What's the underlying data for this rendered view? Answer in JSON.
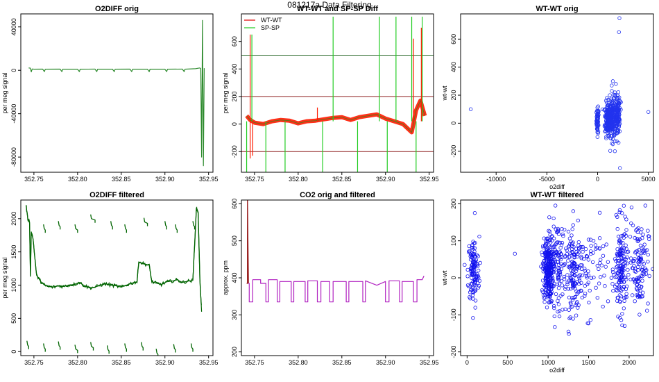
{
  "figure": {
    "title": "081217a   Data Filtering"
  },
  "chart_data": [
    {
      "id": "p1",
      "type": "line",
      "title": "O2DIFF orig",
      "xlabel": "",
      "ylabel": "per meg signal",
      "xlim": [
        352.735,
        352.955
      ],
      "ylim": [
        -94000,
        52000
      ],
      "xticks": [
        352.75,
        352.8,
        352.85,
        352.9,
        352.95
      ],
      "xticklabels": [
        "352.75",
        "352.80",
        "352.85",
        "352.90",
        "352.95"
      ],
      "yticks": [
        -80000,
        -40000,
        0,
        40000
      ],
      "yticklabels": [
        "-80000",
        "-40000",
        "0",
        "40000"
      ],
      "ytick_rotated": true,
      "series": [
        {
          "color": "#2e8b2e",
          "x": [
            352.744,
            352.746,
            352.747,
            352.748,
            352.75,
            352.76,
            352.762,
            352.763,
            352.78,
            352.782,
            352.783,
            352.8,
            352.802,
            352.803,
            352.82,
            352.822,
            352.823,
            352.84,
            352.842,
            352.843,
            352.86,
            352.862,
            352.863,
            352.88,
            352.882,
            352.883,
            352.9,
            352.902,
            352.903,
            352.92,
            352.922,
            352.923,
            352.935,
            352.94,
            352.941,
            352.942,
            352.943,
            352.944,
            352.945
          ],
          "y": [
            2200,
            2000,
            -1500,
            1200,
            1000,
            1100,
            -1200,
            1000,
            1100,
            -1300,
            1000,
            1000,
            -1200,
            1000,
            1100,
            -1200,
            1000,
            1000,
            -1300,
            1000,
            1100,
            -1200,
            1000,
            1000,
            -1300,
            1000,
            1000,
            -1200,
            1000,
            1100,
            -1200,
            1000,
            1500,
            2200,
            1500,
            -80000,
            46000,
            -88000,
            2000
          ]
        }
      ]
    },
    {
      "id": "p2",
      "type": "line",
      "title": "WT-WT and SP-SP Diff",
      "xlabel": "",
      "ylabel": "per meg signal",
      "xlim": [
        352.735,
        352.955
      ],
      "ylim": [
        -350,
        800
      ],
      "xticks": [
        352.75,
        352.8,
        352.85,
        352.9,
        352.95
      ],
      "xticklabels": [
        "352.75",
        "352.80",
        "352.85",
        "352.90",
        "352.95"
      ],
      "yticks": [
        -200,
        0,
        200,
        400,
        600
      ],
      "yticklabels": [
        "-200",
        "0",
        "200",
        "400",
        "600"
      ],
      "ytick_rotated": true,
      "hlines": [
        {
          "y": 500,
          "color": "#2e6b2e"
        },
        {
          "y": 200,
          "color": "#8b1a1a"
        },
        {
          "y": -200,
          "color": "#8b1a1a"
        }
      ],
      "legend": {
        "position": "top-left",
        "entries": [
          {
            "label": "WT-WT",
            "color": "#e00000"
          },
          {
            "label": "SP-SP",
            "color": "#22cc22"
          }
        ]
      },
      "series": [
        {
          "name": "WT-WT",
          "color": "#ff1a00",
          "x": [
            352.741,
            352.745,
            352.75,
            352.76,
            352.77,
            352.78,
            352.79,
            352.8,
            352.81,
            352.82,
            352.83,
            352.84,
            352.85,
            352.86,
            352.87,
            352.88,
            352.89,
            352.9,
            352.91,
            352.92,
            352.93,
            352.935,
            352.94,
            352.945
          ],
          "y": [
            60,
            30,
            10,
            0,
            20,
            30,
            25,
            5,
            20,
            25,
            35,
            45,
            50,
            30,
            50,
            60,
            70,
            40,
            20,
            0,
            -60,
            100,
            170,
            60
          ],
          "spikes": [
            {
              "x": 352.745,
              "y": 650
            },
            {
              "x": 352.745,
              "y": -250
            },
            {
              "x": 352.748,
              "y": -230
            },
            {
              "x": 352.822,
              "y": 120
            },
            {
              "x": 352.932,
              "y": 620
            },
            {
              "x": 352.941,
              "y": 700
            }
          ]
        },
        {
          "name": "SP-SP",
          "color": "#22cc22",
          "spikes": [
            {
              "x": 352.741,
              "y": -350
            },
            {
              "x": 352.747,
              "y": 650
            },
            {
              "x": 352.763,
              "y": -350
            },
            {
              "x": 352.785,
              "y": -350
            },
            {
              "x": 352.828,
              "y": -350
            },
            {
              "x": 352.84,
              "y": 780
            },
            {
              "x": 352.868,
              "y": -350
            },
            {
              "x": 352.893,
              "y": 780
            },
            {
              "x": 352.902,
              "y": -350
            },
            {
              "x": 352.912,
              "y": 780
            },
            {
              "x": 352.93,
              "y": 780
            },
            {
              "x": 352.935,
              "y": -350
            },
            {
              "x": 352.942,
              "y": 780
            }
          ]
        }
      ]
    },
    {
      "id": "p3",
      "type": "scatter",
      "title": "WT-WT orig",
      "xlabel": "o2diff",
      "ylabel": "wt-wt",
      "xlim": [
        -13500,
        5500
      ],
      "ylim": [
        -350,
        780
      ],
      "xticks": [
        -10000,
        -5000,
        0,
        5000
      ],
      "xticklabels": [
        "-10000",
        "-5000",
        "0",
        "5000"
      ],
      "yticks": [
        -200,
        0,
        200,
        400,
        600
      ],
      "yticklabels": [
        "-200",
        "0",
        "200",
        "400",
        "600"
      ],
      "ytick_rotated": true,
      "series": [
        {
          "color": "#2233ee",
          "points": [
            [
              -12500,
              100
            ],
            [
              5000,
              80
            ],
            [
              2150,
              750
            ],
            [
              2100,
              650
            ],
            [
              1500,
              300
            ],
            [
              1800,
              280
            ],
            [
              1400,
              230
            ],
            [
              1700,
              220
            ],
            [
              1200,
              200
            ],
            [
              2200,
              -320
            ],
            [
              1700,
              -200
            ],
            [
              1500,
              -150
            ],
            [
              1900,
              -130
            ],
            [
              1300,
              -90
            ],
            [
              50,
              120
            ],
            [
              0,
              -40
            ],
            [
              100,
              60
            ],
            [
              2300,
              150
            ],
            [
              2000,
              180
            ]
          ],
          "clusters": [
            {
              "cx": 0,
              "cy": 20,
              "sx": 60,
              "sy": 45,
              "n": 60
            },
            {
              "cx": 1000,
              "cy": 30,
              "sx": 150,
              "sy": 60,
              "n": 160
            },
            {
              "cx": 1500,
              "cy": 40,
              "sx": 250,
              "sy": 70,
              "n": 160
            },
            {
              "cx": 2000,
              "cy": 50,
              "sx": 120,
              "sy": 70,
              "n": 100
            }
          ]
        }
      ]
    },
    {
      "id": "p4",
      "type": "line",
      "title": "O2DIFF filtered",
      "xlabel": "",
      "ylabel": "per meg signal",
      "xlim": [
        352.735,
        352.955
      ],
      "ylim": [
        -60,
        2280
      ],
      "xticks": [
        352.75,
        352.8,
        352.85,
        352.9,
        352.95
      ],
      "xticklabels": [
        "352.75",
        "352.80",
        "352.85",
        "352.90",
        "352.95"
      ],
      "yticks": [
        0,
        500,
        1000,
        1500,
        2000
      ],
      "yticklabels": [
        "0",
        "500",
        "1000",
        "1500",
        "2000"
      ],
      "ytick_rotated": true,
      "series": [
        {
          "color": "#006400",
          "x": [
            352.741,
            352.743,
            352.745,
            352.746,
            352.747,
            352.749,
            352.753,
            352.758,
            352.762,
            352.766,
            352.772,
            352.778,
            352.784,
            352.79,
            352.796,
            352.802,
            352.808,
            352.814,
            352.82,
            352.826,
            352.832,
            352.838,
            352.844,
            352.85,
            352.856,
            352.862,
            352.868,
            352.87,
            352.876,
            352.882,
            352.885,
            352.89,
            352.896,
            352.902,
            352.908,
            352.914,
            352.92,
            352.926,
            352.932,
            352.936,
            352.938,
            352.94,
            352.942
          ],
          "y": [
            2200,
            2000,
            1950,
            1150,
            1800,
            1700,
            1150,
            1050,
            1000,
            980,
            970,
            990,
            980,
            1000,
            1010,
            1040,
            990,
            960,
            970,
            1000,
            1020,
            1000,
            990,
            970,
            1000,
            1030,
            1050,
            1350,
            1320,
            1300,
            1050,
            1030,
            1010,
            1050,
            1060,
            1080,
            1040,
            1060,
            1070,
            2150,
            2100,
            1100,
            600
          ],
          "segments": [
            {
              "x0": 352.761,
              "x1": 352.763,
              "y": 1850
            },
            {
              "x0": 352.778,
              "x1": 352.78,
              "y": 1900
            },
            {
              "x0": 352.797,
              "x1": 352.8,
              "y": 1850
            },
            {
              "x0": 352.815,
              "x1": 352.82,
              "y": 2000
            },
            {
              "x0": 352.838,
              "x1": 352.84,
              "y": 1900
            },
            {
              "x0": 352.854,
              "x1": 352.856,
              "y": 1850
            },
            {
              "x0": 352.876,
              "x1": 352.88,
              "y": 1950
            },
            {
              "x0": 352.9,
              "x1": 352.902,
              "y": 1900
            },
            {
              "x0": 352.912,
              "x1": 352.914,
              "y": 1850
            },
            {
              "x0": 352.932,
              "x1": 352.934,
              "y": 1900
            },
            {
              "x0": 352.742,
              "x1": 352.744,
              "y": 100
            },
            {
              "x0": 352.761,
              "x1": 352.763,
              "y": 60
            },
            {
              "x0": 352.778,
              "x1": 352.78,
              "y": 90
            },
            {
              "x0": 352.797,
              "x1": 352.8,
              "y": 40
            },
            {
              "x0": 352.815,
              "x1": 352.818,
              "y": 80
            },
            {
              "x0": 352.834,
              "x1": 352.836,
              "y": 30
            },
            {
              "x0": 352.854,
              "x1": 352.856,
              "y": 60
            },
            {
              "x0": 352.873,
              "x1": 352.875,
              "y": 80
            },
            {
              "x0": 352.89,
              "x1": 352.892,
              "y": -20
            },
            {
              "x0": 352.91,
              "x1": 352.912,
              "y": 50
            },
            {
              "x0": 352.93,
              "x1": 352.932,
              "y": 60
            }
          ]
        }
      ]
    },
    {
      "id": "p5",
      "type": "line",
      "title": "CO2 orig and filtered",
      "xlabel": "",
      "ylabel": "approx. ppm",
      "xlim": [
        352.735,
        352.955
      ],
      "ylim": [
        190,
        610
      ],
      "xticks": [
        352.75,
        352.8,
        352.85,
        352.9,
        352.95
      ],
      "xticklabels": [
        "352.75",
        "352.80",
        "352.85",
        "352.90",
        "352.95"
      ],
      "yticks": [
        200,
        300,
        400,
        500,
        600
      ],
      "yticklabels": [
        "200",
        "300",
        "400",
        "500",
        "600"
      ],
      "ytick_rotated": true,
      "series": [
        {
          "name": "orig",
          "color": "#8b0000",
          "x": [
            352.741,
            352.742,
            352.742,
            352.743
          ],
          "y": [
            385,
            385,
            610,
            385
          ]
        },
        {
          "name": "filtered",
          "color": "#b020c0",
          "x": [
            352.743,
            352.744,
            352.744,
            352.748,
            352.748,
            352.752,
            352.752,
            352.757,
            352.757,
            352.763,
            352.763,
            352.766,
            352.766,
            352.776,
            352.776,
            352.779,
            352.779,
            352.792,
            352.792,
            352.795,
            352.795,
            352.808,
            352.808,
            352.811,
            352.811,
            352.822,
            352.822,
            352.826,
            352.826,
            352.836,
            352.836,
            352.84,
            352.84,
            352.855,
            352.855,
            352.858,
            352.858,
            352.874,
            352.874,
            352.877,
            352.877,
            352.89,
            352.9,
            352.9,
            352.904,
            352.904,
            352.916,
            352.916,
            352.919,
            352.919,
            352.932,
            352.932,
            352.936,
            352.936,
            352.942,
            352.944
          ],
          "y": [
            385,
            385,
            335,
            335,
            395,
            395,
            395,
            395,
            385,
            385,
            335,
            335,
            395,
            395,
            335,
            335,
            390,
            390,
            335,
            335,
            390,
            390,
            335,
            335,
            392,
            392,
            335,
            335,
            390,
            390,
            335,
            335,
            390,
            390,
            335,
            335,
            390,
            390,
            335,
            335,
            392,
            380,
            390,
            335,
            335,
            392,
            392,
            335,
            335,
            390,
            390,
            335,
            335,
            395,
            395,
            405
          ]
        }
      ]
    },
    {
      "id": "p6",
      "type": "scatter",
      "title": "WT-WT filtered",
      "xlabel": "o2diff",
      "ylabel": "wt-wt",
      "xlim": [
        -80,
        2300
      ],
      "ylim": [
        -210,
        210
      ],
      "xticks": [
        0,
        500,
        1000,
        1500,
        2000
      ],
      "xticklabels": [
        "0",
        "500",
        "1000",
        "1500",
        "2000"
      ],
      "yticks": [
        -200,
        -100,
        0,
        100,
        200
      ],
      "yticklabels": [
        "-200",
        "-100",
        "0",
        "100",
        "200"
      ],
      "ytick_rotated": true,
      "series": [
        {
          "color": "#1111ee",
          "points": [
            [
              590,
              65
            ],
            [
              -30,
              35
            ],
            [
              95,
              175
            ],
            [
              1090,
              195
            ],
            [
              1310,
              180
            ],
            [
              2030,
              190
            ],
            [
              2200,
              195
            ],
            [
              1950,
              165
            ],
            [
              1560,
              100
            ],
            [
              1720,
              90
            ],
            [
              2170,
              -40
            ],
            [
              1280,
              -70
            ],
            [
              1140,
              -90
            ],
            [
              10,
              -20
            ]
          ],
          "clusters": [
            {
              "cx": 80,
              "cy": 20,
              "sx": 35,
              "sy": 45,
              "n": 120
            },
            {
              "cx": 1000,
              "cy": 20,
              "sx": 30,
              "sy": 45,
              "n": 260
            },
            {
              "cx": 1110,
              "cy": 40,
              "sx": 60,
              "sy": 55,
              "n": 120
            },
            {
              "cx": 1320,
              "cy": 10,
              "sx": 50,
              "sy": 55,
              "n": 120
            },
            {
              "cx": 1500,
              "cy": 20,
              "sx": 120,
              "sy": 60,
              "n": 80
            },
            {
              "cx": 1900,
              "cy": 20,
              "sx": 40,
              "sy": 60,
              "n": 150
            },
            {
              "cx": 2120,
              "cy": 40,
              "sx": 60,
              "sy": 60,
              "n": 120
            }
          ]
        }
      ]
    }
  ]
}
